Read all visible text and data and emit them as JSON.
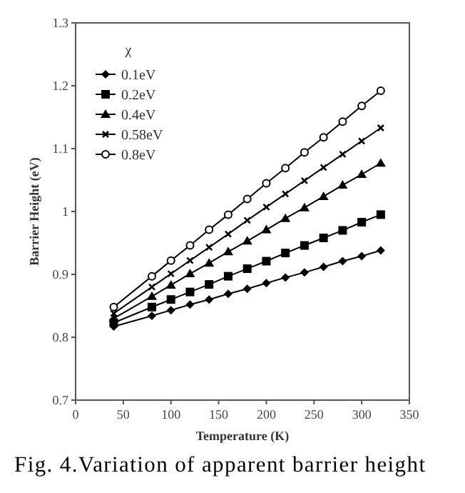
{
  "chart_data": {
    "type": "line",
    "xlabel": "Temperature (K)",
    "ylabel": "Barrier Height (eV)",
    "legend_title": "χ",
    "legend": "top left",
    "grid": false,
    "x": [
      40,
      80,
      100,
      120,
      140,
      160,
      180,
      200,
      220,
      240,
      260,
      280,
      300,
      320
    ],
    "xlim": [
      0,
      350
    ],
    "xticks": [
      0,
      50,
      100,
      150,
      200,
      250,
      300,
      350
    ],
    "ylim": [
      0.7,
      1.3
    ],
    "yticks": [
      0.7,
      0.8,
      0.9,
      1,
      1.1,
      1.2,
      1.3
    ],
    "series": [
      {
        "name": "0.1eV",
        "color": "#000000",
        "marker": "diamond",
        "values": [
          0.817,
          0.834,
          0.843,
          0.852,
          0.86,
          0.869,
          0.877,
          0.886,
          0.895,
          0.903,
          0.912,
          0.921,
          0.929,
          0.938
        ]
      },
      {
        "name": "0.2eV",
        "color": "#000000",
        "marker": "square",
        "values": [
          0.823,
          0.848,
          0.86,
          0.872,
          0.884,
          0.897,
          0.909,
          0.921,
          0.934,
          0.946,
          0.958,
          0.97,
          0.983,
          0.995
        ]
      },
      {
        "name": "0.4eV",
        "color": "#000000",
        "marker": "triangle",
        "values": [
          0.83,
          0.865,
          0.883,
          0.901,
          0.918,
          0.936,
          0.953,
          0.971,
          0.989,
          1.006,
          1.024,
          1.042,
          1.059,
          1.077
        ]
      },
      {
        "name": "0.58eV",
        "color": "#000000",
        "marker": "cross",
        "values": [
          0.838,
          0.88,
          0.901,
          0.922,
          0.943,
          0.964,
          0.986,
          1.007,
          1.028,
          1.049,
          1.07,
          1.091,
          1.112,
          1.133
        ]
      },
      {
        "name": "0.8eV",
        "color": "#000000",
        "marker": "circle",
        "values": [
          0.848,
          0.897,
          0.922,
          0.946,
          0.971,
          0.995,
          1.02,
          1.045,
          1.069,
          1.094,
          1.118,
          1.143,
          1.168,
          1.192
        ]
      }
    ],
    "annotations": [
      "Fig. 4.Variation of apparent barrier height"
    ]
  }
}
